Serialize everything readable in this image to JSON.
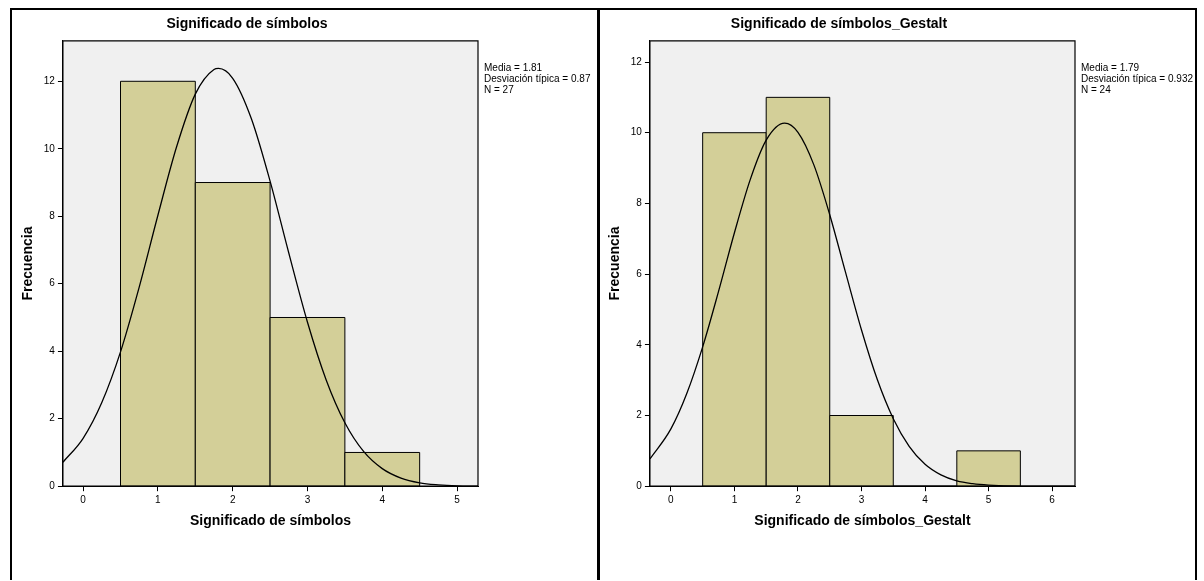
{
  "chart_data": [
    {
      "type": "histogram",
      "title": "Significado de símbolos",
      "xlabel": "Significado de símbolos",
      "ylabel": "Frecuencia",
      "bins": [
        0.5,
        1.5,
        2.5,
        3.5,
        4.5
      ],
      "values": [
        12,
        9,
        5,
        1
      ],
      "color": "#d3cf98",
      "xlim": [
        -0.27,
        5.28
      ],
      "xticks": [
        0,
        1,
        2,
        3,
        4,
        5
      ],
      "ylim": [
        0,
        13.2
      ],
      "yticks": [
        0,
        2,
        4,
        6,
        8,
        10,
        12
      ],
      "grid": false,
      "legend": false,
      "series": [
        {
          "type": "line",
          "color": "#000000",
          "x": [
            -0.27,
            0,
            0.25,
            0.5,
            0.75,
            1,
            1.25,
            1.5,
            1.75,
            1.81,
            2,
            2.25,
            2.5,
            2.75,
            3,
            3.25,
            3.5,
            3.75,
            4,
            4.25,
            4.5,
            4.75,
            5,
            5.28
          ],
          "values": [
            0.71,
            1.42,
            2.48,
            3.98,
            5.9,
            8.03,
            10.06,
            11.62,
            12.35,
            12.38,
            12.09,
            10.89,
            9.04,
            6.91,
            4.86,
            3.15,
            1.88,
            1.03,
            0.52,
            0.24,
            0.1,
            0.04,
            0.01,
            0
          ]
        }
      ],
      "annotations": [
        "Media = 1.81",
        "Desviación típica = 0.87",
        "N = 27"
      ]
    },
    {
      "type": "histogram",
      "title": "Significado de símbolos_Gestalt",
      "xlabel": "Significado de símbolos_Gestalt",
      "ylabel": "Frecuencia",
      "bins": [
        0.5,
        1.5,
        2.5,
        3.5,
        4.5,
        5.5
      ],
      "values": [
        10,
        11,
        2,
        0,
        1
      ],
      "color": "#d3cf98",
      "xlim": [
        -0.33,
        6.36
      ],
      "xticks": [
        0,
        1,
        2,
        3,
        4,
        5,
        6
      ],
      "ylim": [
        0,
        12.6
      ],
      "yticks": [
        0,
        2,
        4,
        6,
        8,
        10,
        12
      ],
      "grid": false,
      "legend": false,
      "series": [
        {
          "type": "line",
          "color": "#000000",
          "x": [
            -0.33,
            0,
            0.25,
            0.5,
            0.75,
            1,
            1.25,
            1.5,
            1.79,
            2,
            2.25,
            2.5,
            2.75,
            3,
            3.25,
            3.5,
            3.75,
            4,
            4.25,
            4.5,
            4.75,
            5,
            5.5,
            6.36
          ],
          "values": [
            0.77,
            1.62,
            2.62,
            3.94,
            5.51,
            7.17,
            8.68,
            9.79,
            10.27,
            10.01,
            9.09,
            7.68,
            6.04,
            4.42,
            3.01,
            1.91,
            1.13,
            0.62,
            0.32,
            0.15,
            0.07,
            0.03,
            0,
            0
          ]
        }
      ],
      "annotations": [
        "Media = 1.79",
        "Desviación típica = 0.932",
        "N = 24"
      ]
    }
  ]
}
